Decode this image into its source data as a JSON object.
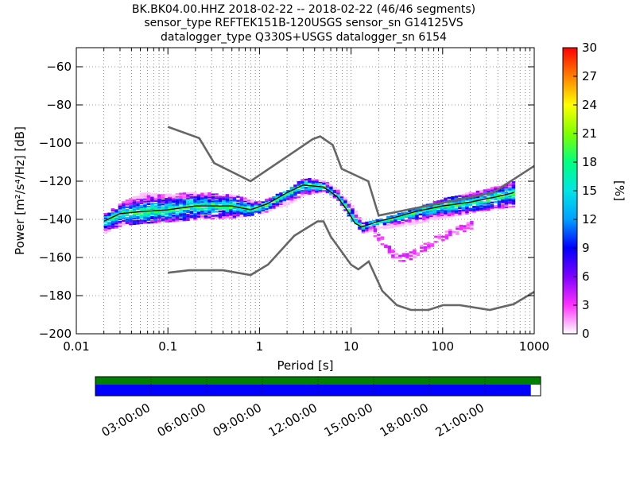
{
  "title": {
    "line1": "BK.BK04.00.HHZ   2018-02-22 -- 2018-02-22  (46/46 segments)",
    "line2": "sensor_type REFTEK151B-120USGS sensor_sn G14125VS",
    "line3": "datalogger_type Q330S+USGS datalogger_sn 6154"
  },
  "chart_data": {
    "type": "heatmap",
    "xlabel": "Period [s]",
    "ylabel": "Power [m²/s⁴/Hz] [dB]",
    "xscale": "log",
    "xlim": [
      0.01,
      1000
    ],
    "ylim": [
      -200,
      -50
    ],
    "xticks": [
      0.01,
      0.1,
      1,
      10,
      100,
      1000
    ],
    "xtick_labels": [
      "0.01",
      "0.1",
      "1",
      "10",
      "100",
      "1000"
    ],
    "yticks": [
      -200,
      -180,
      -160,
      -140,
      -120,
      -100,
      -80,
      -60
    ],
    "ytick_labels": [
      "−200",
      "−180",
      "−160",
      "−140",
      "−120",
      "−100",
      "−80",
      "−60"
    ],
    "grid": true,
    "colorbar": {
      "label": "[%]",
      "min": 0,
      "max": 30,
      "ticks": [
        "0",
        "3",
        "6",
        "9",
        "12",
        "15",
        "18",
        "21",
        "24",
        "27",
        "30"
      ],
      "colormap": [
        "#ffffff",
        "#ff33ff",
        "#7f00ff",
        "#0000ff",
        "#00a0ff",
        "#00e5e5",
        "#00ff80",
        "#7fff00",
        "#ffff00",
        "#ff8000",
        "#ff0000"
      ]
    },
    "series": [
      {
        "role": "high-noise-model",
        "color": "#666666",
        "x": [
          0.1,
          0.22,
          0.32,
          0.8,
          3.8,
          4.6,
          6.3,
          7.9,
          15.4,
          20,
          354.8,
          1000
        ],
        "y": [
          -91.5,
          -97.4,
          -110.5,
          -120,
          -98,
          -96.5,
          -101,
          -113.5,
          -120,
          -138,
          -126,
          -112
        ]
      },
      {
        "role": "low-noise-model",
        "color": "#666666",
        "x": [
          0.1,
          0.17,
          0.4,
          0.8,
          1.24,
          2.4,
          4.3,
          5.0,
          6.0,
          10.0,
          12.0,
          15.6,
          21.9,
          31.6,
          45.0,
          70.0,
          101.0,
          154.0,
          328.0,
          600.0,
          1000.0
        ],
        "y": [
          -168,
          -166.7,
          -166.7,
          -169.2,
          -163.7,
          -148.6,
          -141.1,
          -141.1,
          -149,
          -163.8,
          -166.2,
          -162.1,
          -177.5,
          -185,
          -187.5,
          -187.5,
          -185,
          -185,
          -187.5,
          -184.4,
          -178
        ]
      },
      {
        "role": "mode",
        "color": "#000000",
        "x": [
          0.02,
          0.03,
          0.05,
          0.1,
          0.2,
          0.5,
          0.8,
          1.2,
          2,
          3,
          5,
          7,
          9,
          11,
          13,
          15,
          20,
          30,
          50,
          100,
          200,
          400,
          600
        ],
        "y": [
          -141,
          -137,
          -136,
          -135,
          -133,
          -133,
          -135,
          -132,
          -126,
          -122,
          -123,
          -128,
          -135,
          -142,
          -144,
          -143,
          -141,
          -139,
          -136,
          -133,
          -131,
          -128,
          -126
        ]
      }
    ],
    "density_bands": [
      {
        "x": [
          0.02,
          0.03,
          0.05,
          0.1,
          0.2,
          0.5,
          1,
          2,
          3,
          5,
          7,
          10,
          13,
          20,
          50,
          100,
          300,
          600
        ],
        "y_low": [
          -147,
          -143,
          -142,
          -141,
          -140,
          -139,
          -137,
          -132,
          -127,
          -125,
          -130,
          -141,
          -147,
          -145,
          -142,
          -139,
          -135,
          -133
        ],
        "y_high": [
          -137,
          -131,
          -126,
          -127,
          -126,
          -127,
          -131,
          -124,
          -118,
          -120,
          -125,
          -133,
          -142,
          -140,
          -134,
          -129,
          -124,
          -120
        ]
      }
    ],
    "outlier_branch": {
      "x": [
        16,
        20,
        25,
        30,
        40,
        60,
        80,
        120,
        200
      ],
      "y": [
        -145,
        -150,
        -156,
        -160,
        -160,
        -155,
        -151,
        -147,
        -143
      ]
    }
  },
  "timeline": {
    "labels": [
      "03:00:00",
      "06:00:00",
      "09:00:00",
      "12:00:00",
      "15:00:00",
      "18:00:00",
      "21:00:00"
    ],
    "available_color": "#008000",
    "data_color": "#0000ff",
    "coverage_fraction": 0.978
  }
}
